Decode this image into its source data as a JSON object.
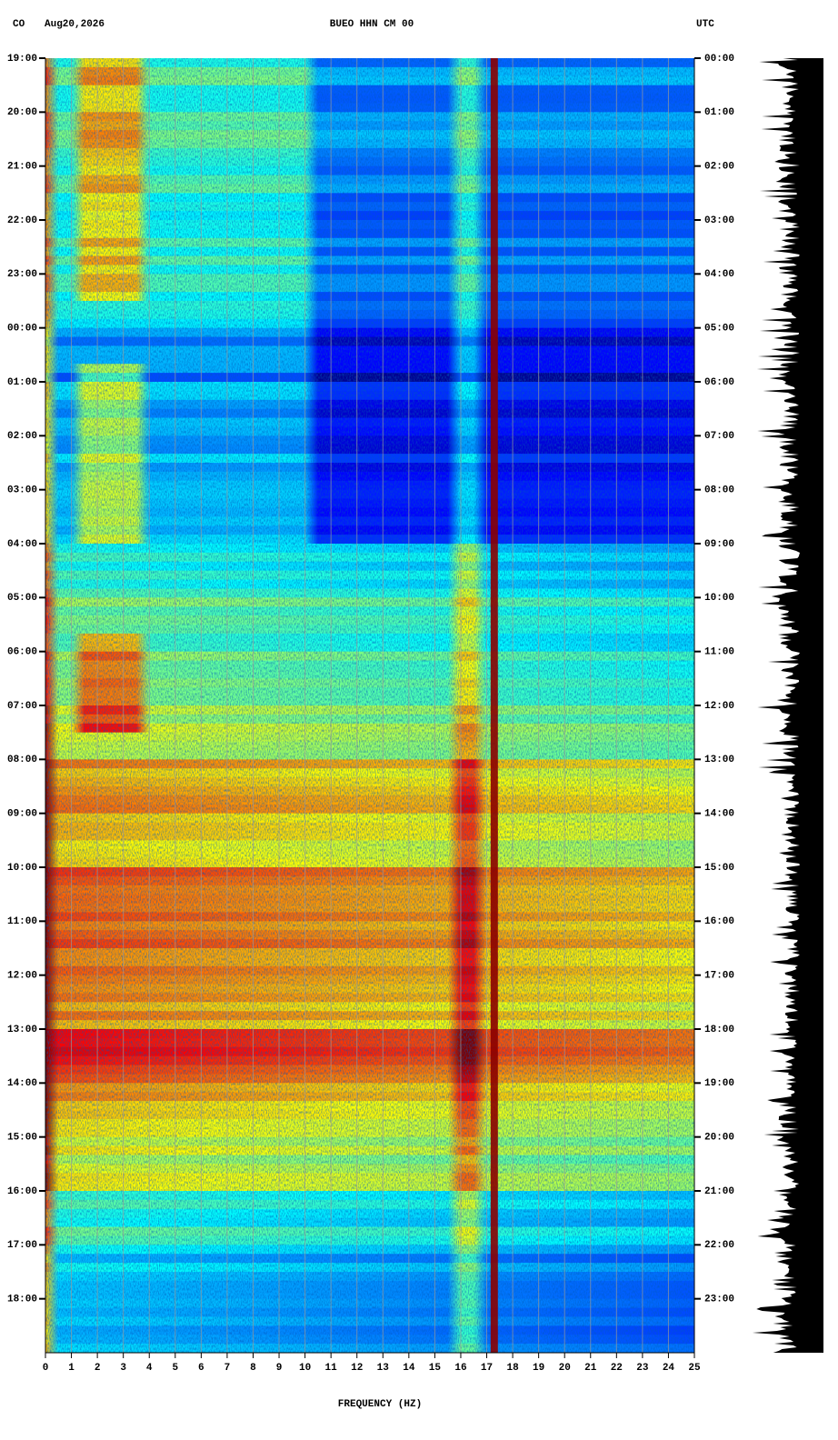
{
  "chart_data": {
    "type": "spectrogram",
    "network": "CO",
    "date": "Aug20,2026",
    "title": "BUEO HHN CM 00",
    "timezone": "UTC",
    "x_label": "FREQUENCY (HZ)",
    "xlim": [
      0,
      25
    ],
    "xticks": [
      0,
      1,
      2,
      3,
      4,
      5,
      6,
      7,
      8,
      9,
      10,
      11,
      12,
      13,
      14,
      15,
      16,
      17,
      18,
      19,
      20,
      21,
      22,
      23,
      24,
      25
    ],
    "ylim": [
      0,
      24
    ],
    "yticks": [
      {
        "value": 0,
        "label": "19:00"
      },
      {
        "value": 1,
        "label": "20:00"
      },
      {
        "value": 2,
        "label": "21:00"
      },
      {
        "value": 3,
        "label": "22:00"
      },
      {
        "value": 4,
        "label": "23:00"
      },
      {
        "value": 5,
        "label": "00:00"
      },
      {
        "value": 6,
        "label": "01:00"
      },
      {
        "value": 7,
        "label": "02:00"
      },
      {
        "value": 8,
        "label": "03:00"
      },
      {
        "value": 9,
        "label": "04:00"
      },
      {
        "value": 10,
        "label": "05:00"
      },
      {
        "value": 11,
        "label": "06:00"
      },
      {
        "value": 12,
        "label": "07:00"
      },
      {
        "value": 13,
        "label": "08:00"
      },
      {
        "value": 14,
        "label": "09:00"
      },
      {
        "value": 15,
        "label": "10:00"
      },
      {
        "value": 16,
        "label": "11:00"
      },
      {
        "value": 17,
        "label": "12:00"
      },
      {
        "value": 18,
        "label": "13:00"
      },
      {
        "value": 19,
        "label": "14:00"
      },
      {
        "value": 20,
        "label": "15:00"
      },
      {
        "value": 21,
        "label": "16:00"
      },
      {
        "value": 22,
        "label": "17:00"
      },
      {
        "value": 23,
        "label": "18:00"
      }
    ],
    "y2lim": [
      0,
      24
    ],
    "y2ticks": [
      {
        "value": 0,
        "label": "00:00"
      },
      {
        "value": 1,
        "label": "01:00"
      },
      {
        "value": 2,
        "label": "02:00"
      },
      {
        "value": 3,
        "label": "03:00"
      },
      {
        "value": 4,
        "label": "04:00"
      },
      {
        "value": 5,
        "label": "05:00"
      },
      {
        "value": 6,
        "label": "06:00"
      },
      {
        "value": 7,
        "label": "07:00"
      },
      {
        "value": 8,
        "label": "08:00"
      },
      {
        "value": 9,
        "label": "09:00"
      },
      {
        "value": 10,
        "label": "10:00"
      },
      {
        "value": 11,
        "label": "11:00"
      },
      {
        "value": 12,
        "label": "12:00"
      },
      {
        "value": 13,
        "label": "13:00"
      },
      {
        "value": 14,
        "label": "14:00"
      },
      {
        "value": 15,
        "label": "15:00"
      },
      {
        "value": 16,
        "label": "16:00"
      },
      {
        "value": 17,
        "label": "17:00"
      },
      {
        "value": 18,
        "label": "18:00"
      },
      {
        "value": 19,
        "label": "19:00"
      },
      {
        "value": 20,
        "label": "20:00"
      },
      {
        "value": 21,
        "label": "21:00"
      },
      {
        "value": 22,
        "label": "22:00"
      },
      {
        "value": 23,
        "label": "23:00"
      }
    ],
    "grid": true
  }
}
